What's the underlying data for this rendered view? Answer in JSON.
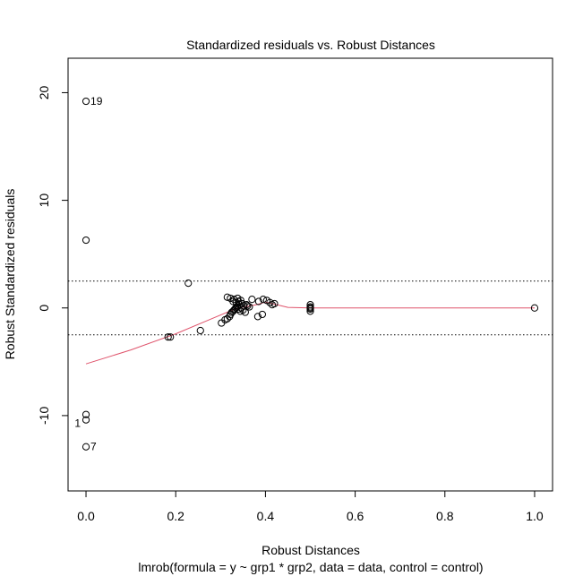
{
  "chart_data": {
    "type": "scatter",
    "title": "Standardized residuals vs. Robust Distances",
    "xlabel": "Robust Distances",
    "ylabel": "Robust Standardized residuals",
    "subtitle": "lmrob(formula = y ~ grp1 * grp2, data = data, control = control)",
    "xlim": [
      -0.04,
      1.04
    ],
    "ylim": [
      -17,
      23.2
    ],
    "x_ticks": [
      0.0,
      0.2,
      0.4,
      0.6,
      0.8,
      1.0
    ],
    "x_tick_labels": [
      "0.0",
      "0.2",
      "0.4",
      "0.6",
      "0.8",
      "1.0"
    ],
    "y_ticks": [
      -10,
      0,
      10,
      20
    ],
    "y_tick_labels": [
      "-10",
      "0",
      "10",
      "20"
    ],
    "grid": false,
    "reference_lines": [
      2.5,
      -2.5
    ],
    "colors": {
      "points": "#000000",
      "smooth": "#DF536B",
      "reference": "#000000"
    },
    "points": [
      {
        "x": 0.0,
        "y": 19.2
      },
      {
        "x": 0.0,
        "y": 6.3
      },
      {
        "x": 0.0,
        "y": -9.9
      },
      {
        "x": 0.0,
        "y": -10.4
      },
      {
        "x": 0.0,
        "y": -12.9
      },
      {
        "x": 0.228,
        "y": 2.3
      },
      {
        "x": 0.183,
        "y": -2.7
      },
      {
        "x": 0.188,
        "y": -2.7
      },
      {
        "x": 0.255,
        "y": -2.1
      },
      {
        "x": 0.302,
        "y": -1.4
      },
      {
        "x": 0.31,
        "y": -1.1
      },
      {
        "x": 0.315,
        "y": -1.0
      },
      {
        "x": 0.32,
        "y": -0.8
      },
      {
        "x": 0.322,
        "y": -0.6
      },
      {
        "x": 0.325,
        "y": -0.4
      },
      {
        "x": 0.328,
        "y": -0.3
      },
      {
        "x": 0.33,
        "y": -0.2
      },
      {
        "x": 0.332,
        "y": -0.1
      },
      {
        "x": 0.334,
        "y": 0.0
      },
      {
        "x": 0.336,
        "y": 0.1
      },
      {
        "x": 0.338,
        "y": 0.2
      },
      {
        "x": 0.34,
        "y": -0.1
      },
      {
        "x": 0.342,
        "y": 0.3
      },
      {
        "x": 0.344,
        "y": -0.3
      },
      {
        "x": 0.346,
        "y": 0.0
      },
      {
        "x": 0.348,
        "y": 0.4
      },
      {
        "x": 0.35,
        "y": -0.2
      },
      {
        "x": 0.352,
        "y": 0.2
      },
      {
        "x": 0.355,
        "y": -0.4
      },
      {
        "x": 0.358,
        "y": 0.3
      },
      {
        "x": 0.315,
        "y": 1.0
      },
      {
        "x": 0.322,
        "y": 0.9
      },
      {
        "x": 0.33,
        "y": 0.8
      },
      {
        "x": 0.338,
        "y": 0.9
      },
      {
        "x": 0.34,
        "y": 0.6
      },
      {
        "x": 0.345,
        "y": 0.7
      },
      {
        "x": 0.335,
        "y": 0.5
      },
      {
        "x": 0.328,
        "y": 0.6
      },
      {
        "x": 0.36,
        "y": 0.2
      },
      {
        "x": 0.364,
        "y": 0.1
      },
      {
        "x": 0.37,
        "y": 0.8
      },
      {
        "x": 0.385,
        "y": 0.6
      },
      {
        "x": 0.395,
        "y": 0.8
      },
      {
        "x": 0.403,
        "y": 0.7
      },
      {
        "x": 0.41,
        "y": 0.5
      },
      {
        "x": 0.415,
        "y": 0.3
      },
      {
        "x": 0.42,
        "y": 0.4
      },
      {
        "x": 0.383,
        "y": -0.8
      },
      {
        "x": 0.393,
        "y": -0.6
      },
      {
        "x": 0.5,
        "y": 0.3
      },
      {
        "x": 0.5,
        "y": 0.1
      },
      {
        "x": 0.5,
        "y": -0.1
      },
      {
        "x": 0.5,
        "y": -0.3
      },
      {
        "x": 0.5,
        "y": 0.0
      },
      {
        "x": 1.0,
        "y": 0.0
      }
    ],
    "point_labels": [
      {
        "text": "19",
        "x": 0.0,
        "y": 19.2,
        "side": "right"
      },
      {
        "text": "1",
        "x": 0.0,
        "y": -10.4,
        "side": "left"
      },
      {
        "text": "7",
        "x": 0.0,
        "y": -12.9,
        "side": "right"
      }
    ],
    "smooth_line": {
      "x": [
        0.0,
        0.1,
        0.2,
        0.28,
        0.32,
        0.34,
        0.36,
        0.38,
        0.4,
        0.42,
        0.45,
        0.5,
        0.6,
        0.8,
        1.0
      ],
      "y": [
        -5.2,
        -3.9,
        -2.4,
        -1.0,
        -0.3,
        0.0,
        0.15,
        0.3,
        0.55,
        0.35,
        0.05,
        0.0,
        0.0,
        0.0,
        0.0
      ]
    }
  }
}
